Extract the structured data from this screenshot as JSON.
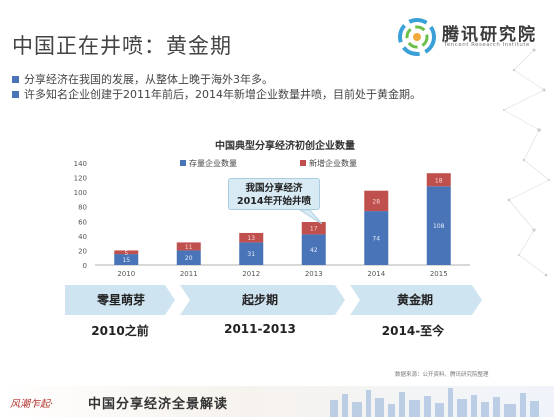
{
  "slide": {
    "title": "中国正在井喷：黄金期",
    "logo": {
      "name": "腾讯研究院",
      "sub": "Tencent Research Institute"
    },
    "bullets": [
      "分享经济在我国的发展，从整体上晚于海外3年多。",
      "许多知名企业创建于2011年前后，2014年新增企业数量井喷，目前处于黄金期。"
    ],
    "callout": [
      "我国分享经济",
      "2014年开始井喷"
    ],
    "phases": [
      "零星萌芽",
      "起步期",
      "黄金期"
    ],
    "periods": [
      "2010之前",
      "2011-2013",
      "2014-至今"
    ],
    "source": "数据来源：公开资料、腾讯研究院整理",
    "footer": {
      "calligraphy": "风潮乍起·",
      "title": "中国分享经济全景解读"
    },
    "colors": {
      "stock": "#4a74b8",
      "new": "#c0504d",
      "phase": "#cfe4f1"
    }
  },
  "chart_data": {
    "type": "bar",
    "stacked": true,
    "title": "中国典型分享经济初创企业数量",
    "categories": [
      "2010",
      "2011",
      "2012",
      "2013",
      "2014",
      "2015"
    ],
    "series": [
      {
        "name": "存量企业数量",
        "values": [
          15,
          20,
          31,
          42,
          74,
          108
        ],
        "labels": [
          "15",
          "20",
          "31",
          "42",
          "74",
          "108"
        ]
      },
      {
        "name": "新增企业数量",
        "values": [
          5,
          11,
          13,
          17,
          28,
          18
        ],
        "labels": [
          "5",
          "11",
          "13",
          "17",
          "28",
          "18"
        ]
      }
    ],
    "ylim": [
      0,
      140
    ],
    "yticks": [
      0,
      20,
      40,
      60,
      80,
      100,
      120,
      140
    ],
    "legend": "top",
    "grid": false
  }
}
